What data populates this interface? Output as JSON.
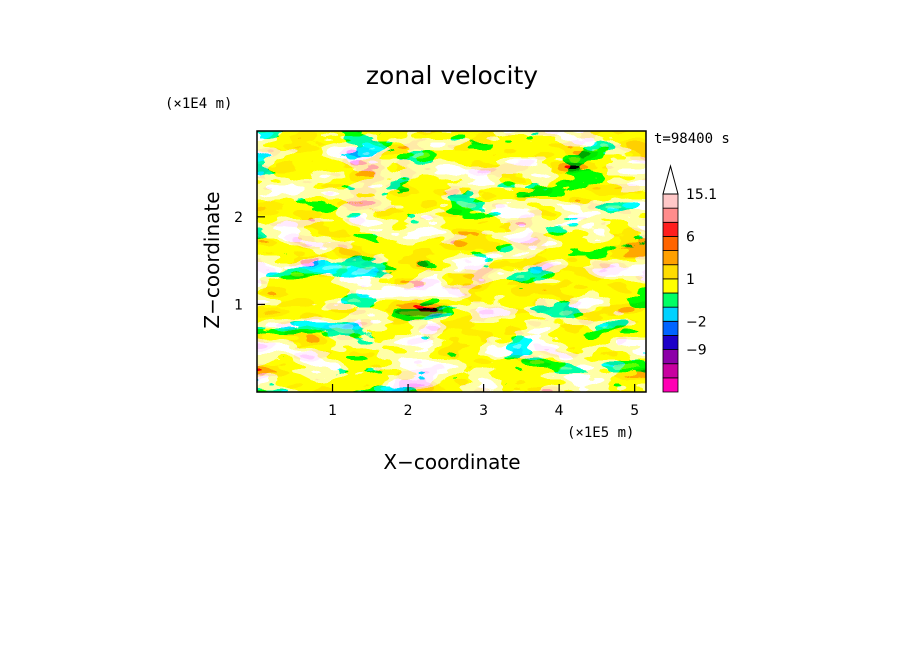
{
  "chart_data": {
    "type": "heatmap",
    "title": "zonal velocity",
    "xlabel": "X−coordinate",
    "ylabel": "Z−coordinate",
    "x_unit": "(×1E5 m)",
    "y_unit": "(×1E4 m)",
    "time_label": "t=98400 s",
    "xlim": [
      0,
      5.15
    ],
    "ylim": [
      0,
      2.98
    ],
    "x_ticks": [
      1,
      2,
      3,
      4,
      5
    ],
    "x_tick_labels": [
      "1",
      "2",
      "3",
      "4",
      "5"
    ],
    "y_ticks": [
      1,
      2
    ],
    "y_tick_labels": [
      "1",
      "2"
    ],
    "colorbar": {
      "levels": [
        -16,
        -12,
        -9,
        -6,
        -2,
        -1,
        0,
        1,
        2,
        4,
        6,
        9,
        12,
        15.1
      ],
      "colors": [
        "#ff00b4",
        "#c800a0",
        "#8c00a8",
        "#1e00c8",
        "#0064ff",
        "#00d2ff",
        "#00ff64",
        "#ffff00",
        "#ffdc00",
        "#ffa000",
        "#ff6400",
        "#ff1e1e",
        "#ff8c8c",
        "#ffc8c8"
      ],
      "labels": [
        "15.1",
        "6",
        "1",
        "−2",
        "−9"
      ],
      "label_values": [
        15.1,
        6,
        1,
        -2,
        -9
      ]
    },
    "grid": false
  }
}
